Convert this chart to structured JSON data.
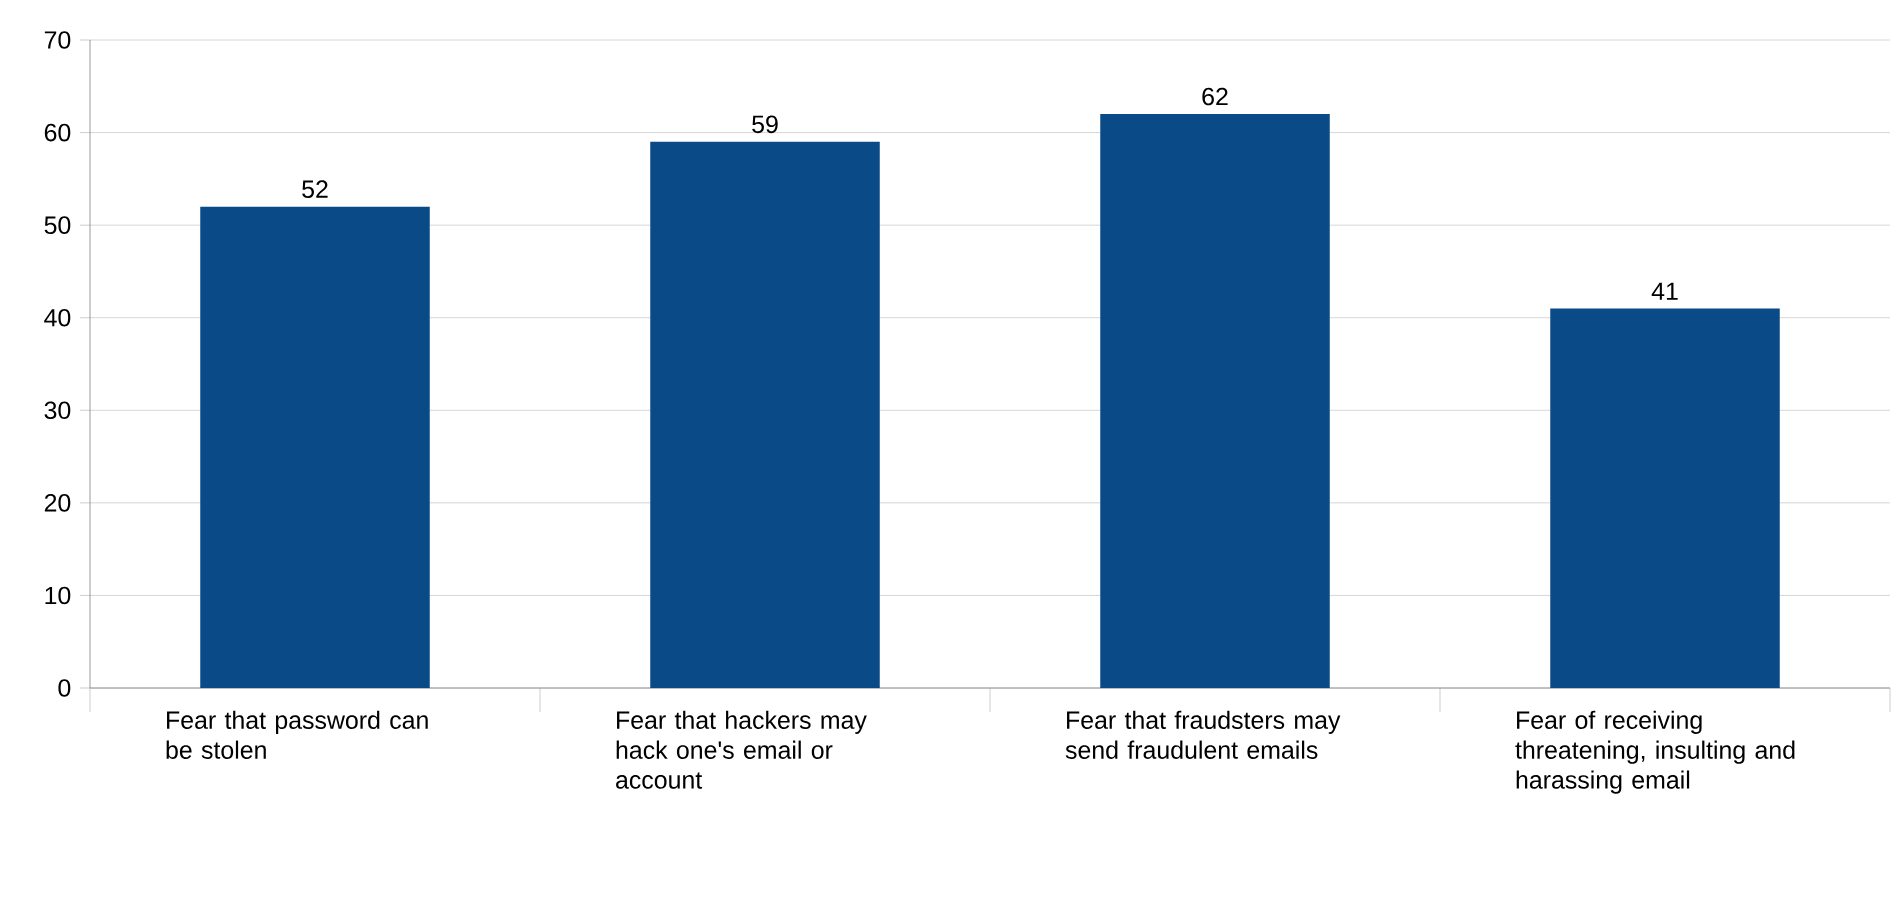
{
  "chart_data": {
    "type": "bar",
    "categories": [
      "Fear that password can be stolen",
      "Fear that hackers may hack one's email or account",
      "Fear that fraudsters may send fraudulent emails",
      "Fear of receiving threatening, insulting and harassing email"
    ],
    "values": [
      52,
      59,
      62,
      41
    ],
    "color": "#0a4a87",
    "ylim": [
      0,
      70
    ],
    "yticks": [
      0,
      10,
      20,
      30,
      40,
      50,
      60,
      70
    ],
    "grid": "y",
    "data_labels": true
  }
}
